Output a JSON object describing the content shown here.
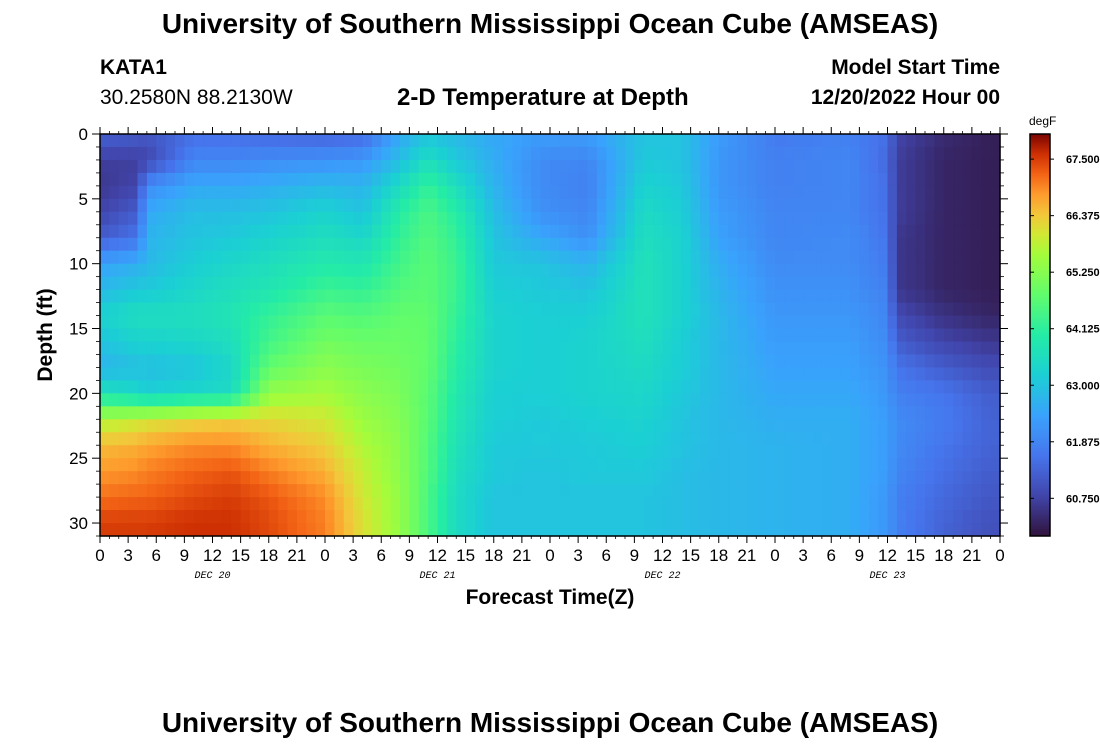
{
  "header": {
    "title": "University of Southern Mississippi Ocean Cube (AMSEAS)",
    "station": "KATA1",
    "coords": "30.2580N  88.2130W",
    "subtitle": "2-D Temperature at Depth",
    "model_start_label": "Model Start Time",
    "model_start_value": "12/20/2022 Hour 00"
  },
  "footer": {
    "title": "University of Southern Mississippi Ocean Cube (AMSEAS)"
  },
  "chart_data": {
    "type": "heatmap",
    "xlabel": "Forecast Time(Z)",
    "ylabel": "Depth (ft)",
    "xlim": [
      0,
      96
    ],
    "ylim": [
      31,
      0
    ],
    "x_ticks": [
      0,
      3,
      6,
      9,
      12,
      15,
      18,
      21,
      24,
      27,
      30,
      33,
      36,
      39,
      42,
      45,
      48,
      51,
      54,
      57,
      60,
      63,
      66,
      69,
      72,
      75,
      78,
      81,
      84,
      87,
      90,
      93,
      96
    ],
    "x_tick_labels": [
      "0",
      "3",
      "6",
      "9",
      "12",
      "15",
      "18",
      "21",
      "0",
      "3",
      "6",
      "9",
      "12",
      "15",
      "18",
      "21",
      "0",
      "3",
      "6",
      "9",
      "12",
      "15",
      "18",
      "21",
      "0",
      "3",
      "6",
      "9",
      "12",
      "15",
      "18",
      "21",
      "0"
    ],
    "day_labels": [
      {
        "text": "DEC 20",
        "x": 12
      },
      {
        "text": "DEC 21",
        "x": 36
      },
      {
        "text": "DEC 22",
        "x": 60
      },
      {
        "text": "DEC 23",
        "x": 84
      }
    ],
    "y_ticks": [
      0,
      5,
      10,
      15,
      20,
      25,
      30
    ],
    "colorbar": {
      "unit": "degF",
      "min": 60.0,
      "max": 68.0,
      "tick_values": [
        67.5,
        66.375,
        65.25,
        64.125,
        63.0,
        61.875,
        60.75
      ],
      "tick_labels": [
        "67.500",
        "66.375",
        "65.250",
        "64.125",
        "63.000",
        "61.875",
        "60.750"
      ]
    },
    "profile_depths": [
      0,
      2,
      4,
      6,
      8,
      10,
      12,
      14,
      16,
      18,
      20,
      22,
      24,
      26,
      28,
      30,
      31
    ],
    "profiles": [
      {
        "t": 0,
        "values": [
          61.3,
          60.7,
          60.6,
          60.8,
          61.2,
          62.4,
          62.8,
          63.3,
          63.0,
          62.7,
          63.7,
          65.7,
          66.5,
          66.8,
          67.1,
          67.5,
          67.5
        ]
      },
      {
        "t": 4,
        "values": [
          61.2,
          60.7,
          60.8,
          61.2,
          61.6,
          62.6,
          63.1,
          63.6,
          63.3,
          62.9,
          63.4,
          65.9,
          66.6,
          66.9,
          67.2,
          67.5,
          67.5
        ]
      },
      {
        "t": 5,
        "values": [
          61.1,
          60.8,
          62.0,
          62.5,
          62.7,
          62.8,
          63.1,
          63.6,
          63.3,
          62.9,
          63.2,
          66.0,
          66.7,
          67.0,
          67.2,
          67.5,
          67.5
        ]
      },
      {
        "t": 10,
        "values": [
          61.5,
          61.9,
          62.5,
          62.9,
          63.0,
          63.2,
          63.4,
          63.6,
          63.4,
          63.0,
          63.4,
          66.2,
          66.9,
          67.2,
          67.4,
          67.6,
          67.6
        ]
      },
      {
        "t": 14,
        "values": [
          61.5,
          61.9,
          62.5,
          62.9,
          63.1,
          63.4,
          63.6,
          63.8,
          63.6,
          63.4,
          63.5,
          66.3,
          66.9,
          67.3,
          67.5,
          67.6,
          67.6
        ]
      },
      {
        "t": 18,
        "values": [
          61.4,
          62.0,
          62.6,
          63.0,
          63.3,
          63.6,
          63.8,
          64.2,
          64.4,
          64.8,
          65.4,
          66.2,
          66.6,
          67.0,
          67.3,
          67.4,
          67.4
        ]
      },
      {
        "t": 24,
        "values": [
          61.3,
          62.1,
          62.8,
          63.3,
          63.6,
          63.9,
          64.3,
          64.7,
          65.0,
          65.3,
          65.6,
          66.0,
          66.3,
          66.6,
          66.9,
          67.0,
          67.0
        ]
      },
      {
        "t": 28,
        "values": [
          61.4,
          62.2,
          62.7,
          63.0,
          63.4,
          63.8,
          64.2,
          64.6,
          64.9,
          65.1,
          65.3,
          65.5,
          65.7,
          65.9,
          66.0,
          66.1,
          66.1
        ]
      },
      {
        "t": 32,
        "values": [
          62.5,
          62.9,
          63.5,
          64.0,
          64.2,
          64.4,
          64.6,
          64.8,
          64.9,
          65.0,
          65.1,
          65.2,
          65.3,
          65.3,
          65.4,
          65.4,
          65.4
        ]
      },
      {
        "t": 35,
        "values": [
          63.0,
          63.6,
          64.2,
          64.5,
          64.6,
          64.7,
          64.7,
          64.8,
          64.8,
          64.8,
          64.7,
          64.7,
          64.6,
          64.6,
          64.5,
          64.5,
          64.5
        ]
      },
      {
        "t": 38,
        "values": [
          62.8,
          63.1,
          63.6,
          64.0,
          64.2,
          64.3,
          64.3,
          64.2,
          64.1,
          64.0,
          63.9,
          63.8,
          63.7,
          63.6,
          63.5,
          63.5,
          63.5
        ]
      },
      {
        "t": 42,
        "values": [
          62.5,
          62.6,
          62.7,
          62.9,
          63.0,
          63.1,
          63.2,
          63.3,
          63.3,
          63.3,
          63.2,
          63.2,
          63.1,
          63.1,
          63.0,
          63.0,
          63.0
        ]
      },
      {
        "t": 47,
        "values": [
          62.3,
          62.0,
          62.0,
          62.1,
          62.5,
          63.0,
          63.1,
          63.2,
          63.2,
          63.2,
          63.2,
          63.1,
          63.1,
          63.0,
          63.0,
          63.0,
          63.0
        ]
      },
      {
        "t": 52,
        "values": [
          62.3,
          61.9,
          61.8,
          61.9,
          62.1,
          62.7,
          63.0,
          63.2,
          63.3,
          63.3,
          63.3,
          63.2,
          63.1,
          63.1,
          63.0,
          63.0,
          63.0
        ]
      },
      {
        "t": 58,
        "values": [
          63.0,
          63.1,
          63.3,
          63.5,
          63.6,
          63.7,
          63.7,
          63.7,
          63.6,
          63.5,
          63.4,
          63.3,
          63.2,
          63.1,
          63.0,
          63.0,
          63.0
        ]
      },
      {
        "t": 62,
        "values": [
          63.0,
          63.0,
          63.1,
          63.2,
          63.3,
          63.3,
          63.3,
          63.3,
          63.2,
          63.2,
          63.1,
          63.0,
          63.0,
          62.9,
          62.9,
          62.9,
          62.9
        ]
      },
      {
        "t": 66,
        "values": [
          62.3,
          62.2,
          62.2,
          62.3,
          62.4,
          62.6,
          62.7,
          62.8,
          62.8,
          62.8,
          62.8,
          62.8,
          62.8,
          62.8,
          62.8,
          62.8,
          62.8
        ]
      },
      {
        "t": 72,
        "values": [
          61.7,
          61.8,
          61.8,
          61.9,
          61.9,
          62.0,
          62.1,
          62.2,
          62.3,
          62.4,
          62.5,
          62.6,
          62.7,
          62.7,
          62.7,
          62.7,
          62.7
        ]
      },
      {
        "t": 80,
        "values": [
          61.8,
          61.9,
          61.9,
          61.9,
          62.0,
          62.0,
          62.1,
          62.2,
          62.3,
          62.4,
          62.5,
          62.6,
          62.6,
          62.6,
          62.6,
          62.6,
          62.6
        ]
      },
      {
        "t": 84,
        "values": [
          61.5,
          61.4,
          61.5,
          61.5,
          61.6,
          61.7,
          61.8,
          61.9,
          62.0,
          62.1,
          62.2,
          62.3,
          62.3,
          62.3,
          62.2,
          62.2,
          62.2
        ]
      },
      {
        "t": 85,
        "values": [
          60.8,
          60.7,
          60.7,
          60.7,
          60.6,
          60.6,
          60.6,
          60.9,
          61.2,
          61.6,
          61.8,
          62.0,
          62.0,
          61.9,
          61.8,
          61.8,
          61.8
        ]
      },
      {
        "t": 90,
        "values": [
          60.4,
          60.3,
          60.3,
          60.3,
          60.3,
          60.3,
          60.3,
          60.5,
          60.8,
          61.2,
          61.6,
          61.7,
          61.6,
          61.5,
          61.4,
          61.3,
          61.3
        ]
      },
      {
        "t": 95,
        "values": [
          60.2,
          60.2,
          60.2,
          60.2,
          60.2,
          60.2,
          60.2,
          60.3,
          60.6,
          60.9,
          61.2,
          61.3,
          61.3,
          61.2,
          61.1,
          61.0,
          61.0
        ]
      },
      {
        "t": 96,
        "values": [
          60.2,
          60.2,
          60.2,
          60.2,
          60.2,
          60.2,
          60.2,
          60.3,
          60.6,
          60.9,
          61.2,
          61.3,
          61.3,
          61.2,
          61.1,
          61.0,
          61.0
        ]
      }
    ]
  }
}
